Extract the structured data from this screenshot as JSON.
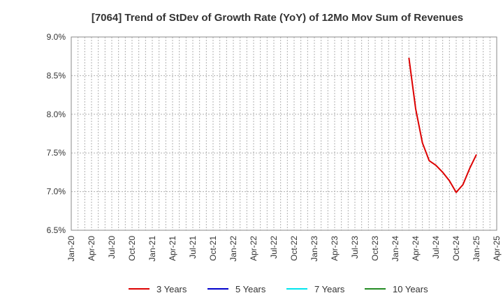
{
  "chart_data": {
    "type": "line",
    "title": "[7064]  Trend of StDev of Growth Rate (YoY) of 12Mo Mov Sum of Revenues",
    "xlabel": "",
    "ylabel": "",
    "ylim": [
      6.5,
      9.0
    ],
    "y_ticks": [
      "6.5%",
      "7.0%",
      "7.5%",
      "8.0%",
      "8.5%",
      "9.0%"
    ],
    "x_ticks": [
      "Jan-20",
      "Apr-20",
      "Jul-20",
      "Oct-20",
      "Jan-21",
      "Apr-21",
      "Jul-21",
      "Oct-21",
      "Jan-22",
      "Apr-22",
      "Jul-22",
      "Oct-22",
      "Jan-23",
      "Apr-23",
      "Jul-23",
      "Oct-23",
      "Jan-24",
      "Apr-24",
      "Jul-24",
      "Oct-24",
      "Jan-25",
      "Apr-25"
    ],
    "x_range": [
      "2020-01",
      "2025-04"
    ],
    "grid": true,
    "legend_position": "bottom",
    "series": [
      {
        "name": "3 Years",
        "color": "#dd0000",
        "x": [
          "2024-03",
          "2024-04",
          "2024-05",
          "2024-06",
          "2024-07",
          "2024-08",
          "2024-09",
          "2024-10",
          "2024-11",
          "2024-12",
          "2025-01"
        ],
        "values": [
          8.73,
          8.07,
          7.63,
          7.4,
          7.34,
          7.25,
          7.14,
          6.99,
          7.09,
          7.3,
          7.48
        ]
      },
      {
        "name": "5 Years",
        "color": "#0000cc",
        "x": [],
        "values": []
      },
      {
        "name": "7 Years",
        "color": "#00e5ee",
        "x": [],
        "values": []
      },
      {
        "name": "10 Years",
        "color": "#228b22",
        "x": [],
        "values": []
      }
    ]
  }
}
